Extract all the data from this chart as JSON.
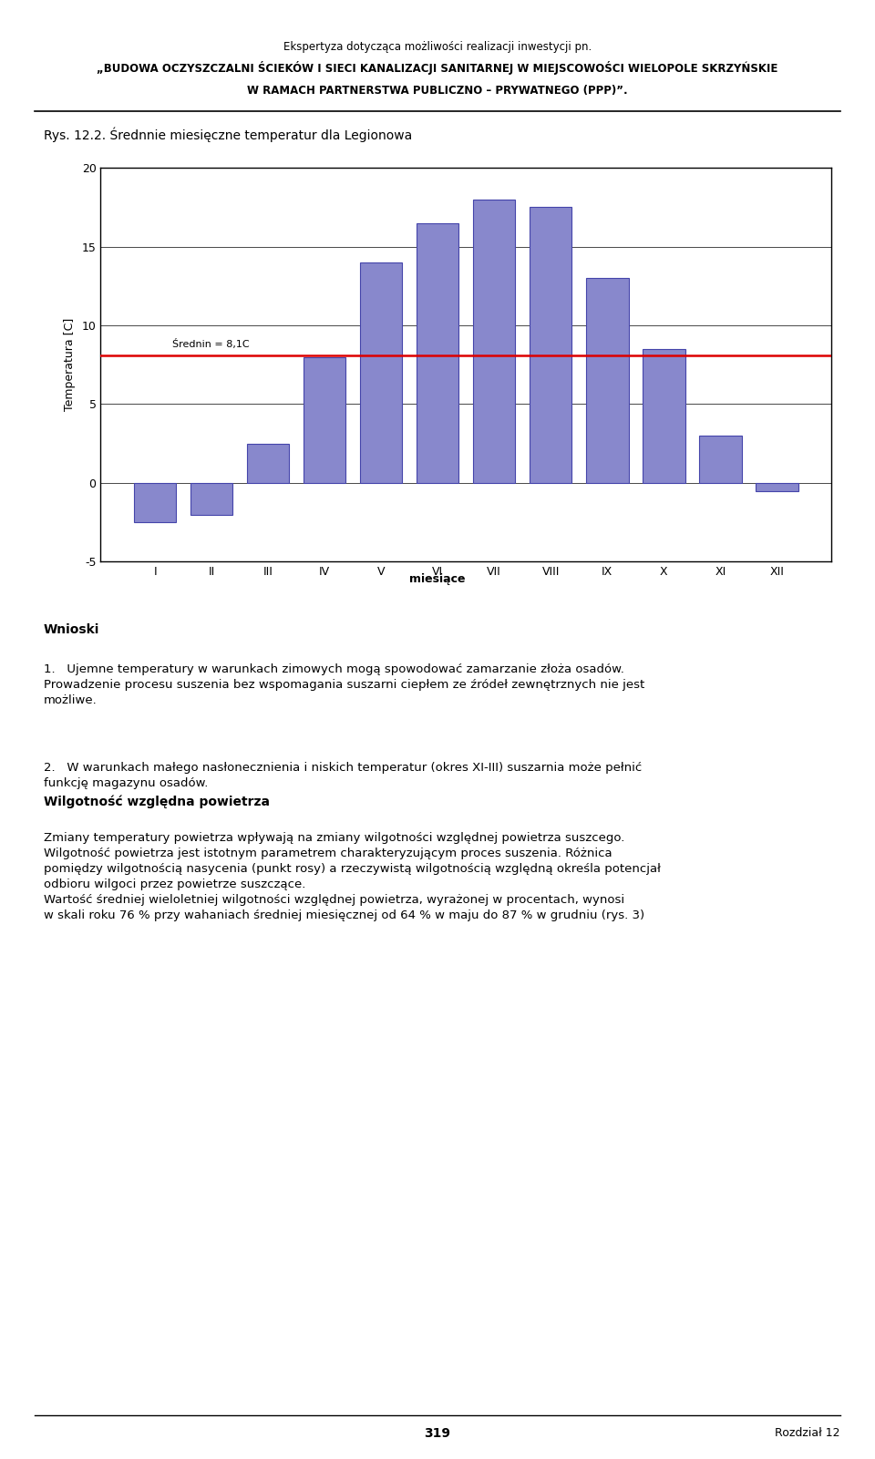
{
  "header_line1": "Ekspertyza dotycząca możliwości realizacji inwestycji pn.",
  "header_line2": "„BUDOWA OCZYSZCZALNI ŚCIEKÓW I SIECI KANALIZACJI SANITARNEJ W MIEJSCOWOŚCI WIELOPOLE SKRZYŃSKIE",
  "header_line3": "W RAMACH PARTNERSTWA PUBLICZNO – PRYWATNEGO (PPP)”.",
  "chart_title": "Rys. 12.2. Średnnie miesięczne temperatur dla Legionowa",
  "months": [
    "I",
    "II",
    "III",
    "IV",
    "V",
    "VI",
    "VII",
    "VIII",
    "IX",
    "X",
    "XI",
    "XII"
  ],
  "temperatures": [
    -2.5,
    -2.0,
    2.5,
    8.0,
    14.0,
    16.5,
    18.0,
    17.5,
    13.0,
    8.5,
    3.0,
    -0.5
  ],
  "mean_value": 8.1,
  "mean_label": "Średnin = 8,1C",
  "ylabel": "Temperatura [C]",
  "xlabel": "miesiące",
  "ylim_min": -5,
  "ylim_max": 20,
  "yticks": [
    -5,
    0,
    5,
    10,
    15,
    20
  ],
  "bar_color": "#8888cc",
  "bar_edge_color": "#4444aa",
  "mean_line_color": "#dd0000",
  "bg_color": "#ffffff",
  "wnioski_title": "Wnioski",
  "wnioski_p1_num": "1.",
  "wnioski_p1_text": "Ujemne temperatury w warunkach zimowych mogą spowodować zamarzanie złoża osadów.\nProwadzenie procesu suszenia bez wspomagania suszarni ciepłem ze źródeł zewnętrznych nie jest\nmożliwe.",
  "wnioski_p2_num": "2.",
  "wnioski_p2_text": "W warunkach małego nasłonecznienia i niskich temperatur (okres XI-III) suszarnia może pełnić\nfunkcję magazynu osadów.",
  "section2_title": "Wilgotność względna powietrza",
  "section2_p1": "Zmiany temperatury powietrza wpływają na zmiany wilgotności względnej powietrza suszcego.\nWilgotność powietrza jest istotnym parametrem charakteryzującym proces suszenia. Różnica\npomiędzy wilgotnością nasycenia (punkt rosy) a rzeczywistą wilgotnością względną określa potencjał\nodbioru wilgoci przez powietrze suszczące.\nWartość średniej wieloletniej wilgotności względnej powietrza, wyrażonej w procentach, wynosi\nw skali roku 76 % przy wahaniach średniej miesięcznej od 64 % w maju do 87 % w grudniu (rys. 3)",
  "footer_page": "319",
  "footer_right": "Rozdział 12"
}
